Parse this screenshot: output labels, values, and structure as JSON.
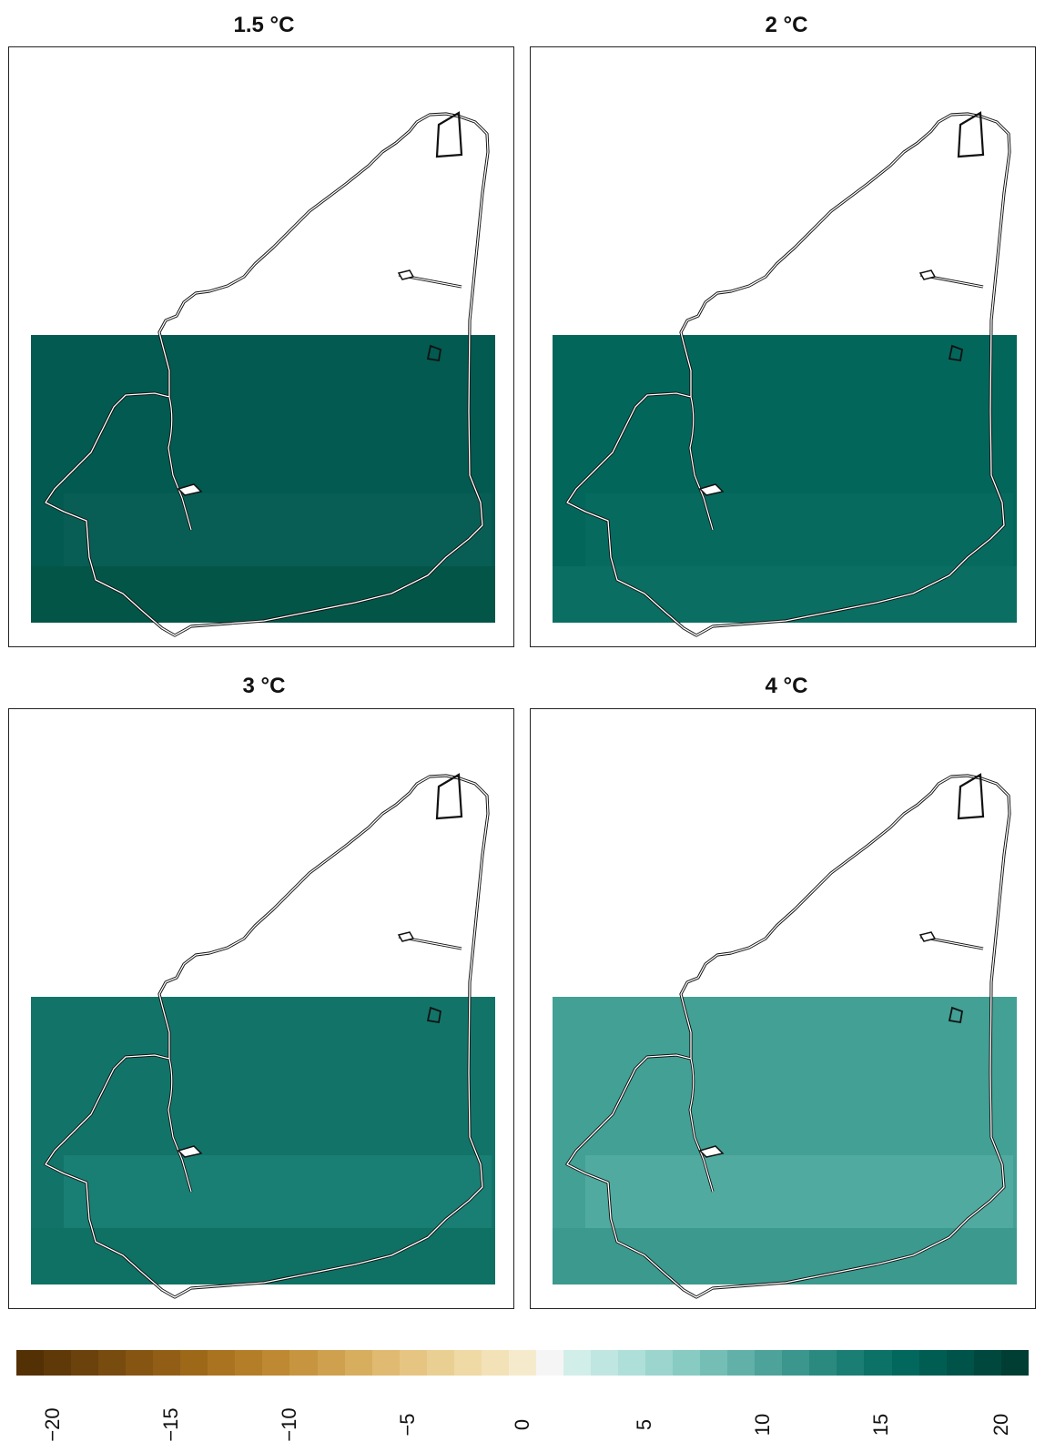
{
  "panels": [
    {
      "title": "1.5 °C",
      "fill_color": "#025a50",
      "variation_color": "#0a5f55",
      "south_band_color": "#035548"
    },
    {
      "title": "2 °C",
      "fill_color": "#03665b",
      "variation_color": "#086b60",
      "south_band_color": "#0a6e62"
    },
    {
      "title": "3 °C",
      "fill_color": "#127469",
      "variation_color": "#1c8175",
      "south_band_color": "#0f7064"
    },
    {
      "title": "4 °C",
      "fill_color": "#42a095",
      "variation_color": "#54aca1",
      "south_band_color": "#3b998e"
    }
  ],
  "legend": {
    "colors": [
      "#543005",
      "#5f3908",
      "#6b420b",
      "#784b0f",
      "#865512",
      "#925e16",
      "#9e6819",
      "#aa731f",
      "#b47d28",
      "#be8932",
      "#c7953f",
      "#cfa14e",
      "#d7ad5e",
      "#dfba70",
      "#e5c581",
      "#eacf93",
      "#efd9a5",
      "#f3e2b8",
      "#f5ebcc",
      "#f5f5f5",
      "#d2eee9",
      "#c0e6e1",
      "#aedfd9",
      "#9bd5ce",
      "#88cbc3",
      "#74beb6",
      "#61b1a8",
      "#4da39a",
      "#3b978d",
      "#2a8a80",
      "#1a7e74",
      "#0c7268",
      "#02675c",
      "#005d52",
      "#005348",
      "#00483e",
      "#003d33"
    ],
    "ticks": [
      "−20",
      "−15",
      "−10",
      "−5",
      "0",
      "5",
      "10",
      "15",
      "20"
    ]
  }
}
